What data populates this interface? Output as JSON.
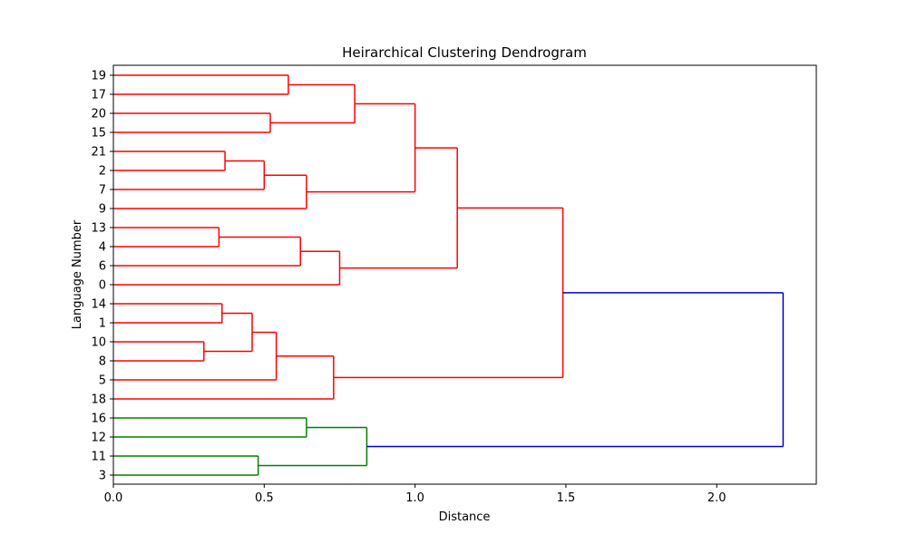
{
  "chart_data": {
    "type": "dendrogram",
    "orientation": "horizontal",
    "title": "Heirarchical Clustering Dendrogram",
    "xlabel": "Distance",
    "ylabel": "Language Number",
    "xlim": [
      0,
      2.33
    ],
    "x_ticks": [
      0.0,
      0.5,
      1.0,
      1.5,
      2.0
    ],
    "x_tick_labels": [
      "0.0",
      "0.5",
      "1.0",
      "1.5",
      "2.0"
    ],
    "leaves_top_to_bottom": [
      "19",
      "17",
      "20",
      "15",
      "21",
      "2",
      "7",
      "9",
      "13",
      "4",
      "6",
      "0",
      "14",
      "1",
      "10",
      "8",
      "5",
      "18",
      "16",
      "12",
      "11",
      "3"
    ],
    "colors": {
      "cluster_1": "#ff0000",
      "cluster_2": "#008000",
      "root": "#0000cc"
    },
    "merges": [
      {
        "a": "19",
        "b": "17",
        "distance": 0.58,
        "color": "cluster_1"
      },
      {
        "a": "20",
        "b": "15",
        "distance": 0.52,
        "color": "cluster_1"
      },
      {
        "a": "19+17",
        "b": "20+15",
        "distance": 0.8,
        "color": "cluster_1"
      },
      {
        "a": "21",
        "b": "2",
        "distance": 0.37,
        "color": "cluster_1"
      },
      {
        "a": "21+2",
        "b": "7",
        "distance": 0.5,
        "color": "cluster_1"
      },
      {
        "a": "21+2+7",
        "b": "9",
        "distance": 0.64,
        "color": "cluster_1"
      },
      {
        "a": "19+17+20+15",
        "b": "21+2+7+9",
        "distance": 1.0,
        "color": "cluster_1"
      },
      {
        "a": "13",
        "b": "4",
        "distance": 0.35,
        "color": "cluster_1"
      },
      {
        "a": "13+4",
        "b": "6",
        "distance": 0.62,
        "color": "cluster_1"
      },
      {
        "a": "13+4+6",
        "b": "0",
        "distance": 0.75,
        "color": "cluster_1"
      },
      {
        "a": "19+17+20+15+21+2+7+9",
        "b": "13+4+6+0",
        "distance": 1.14,
        "color": "cluster_1"
      },
      {
        "a": "14",
        "b": "1",
        "distance": 0.36,
        "color": "cluster_1"
      },
      {
        "a": "10",
        "b": "8",
        "distance": 0.3,
        "color": "cluster_1"
      },
      {
        "a": "14+1",
        "b": "10+8",
        "distance": 0.46,
        "color": "cluster_1"
      },
      {
        "a": "14+1+10+8",
        "b": "5",
        "distance": 0.54,
        "color": "cluster_1"
      },
      {
        "a": "14+1+10+8+5",
        "b": "18",
        "distance": 0.73,
        "color": "cluster_1"
      },
      {
        "a": "19+17+20+15+21+2+7+9+13+4+6+0",
        "b": "14+1+10+8+5+18",
        "distance": 1.49,
        "color": "cluster_1"
      },
      {
        "a": "16",
        "b": "12",
        "distance": 0.64,
        "color": "cluster_2"
      },
      {
        "a": "11",
        "b": "3",
        "distance": 0.48,
        "color": "cluster_2"
      },
      {
        "a": "16+12",
        "b": "11+3",
        "distance": 0.84,
        "color": "cluster_2"
      },
      {
        "a": "19+17+20+15+21+2+7+9+13+4+6+0+14+1+10+8+5+18",
        "b": "16+12+11+3",
        "distance": 2.22,
        "color": "root"
      }
    ]
  }
}
